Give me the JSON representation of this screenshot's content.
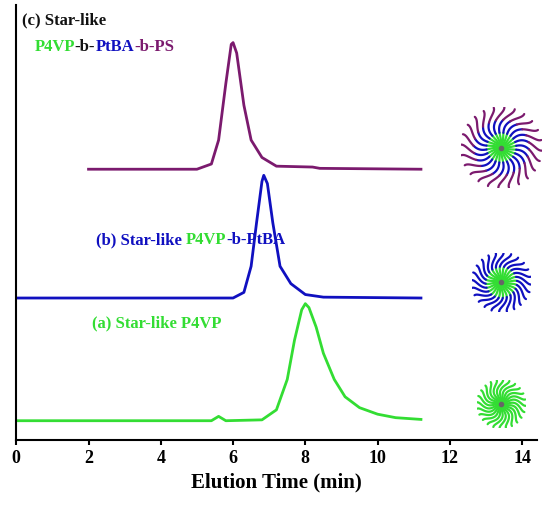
{
  "chart_data": {
    "type": "line",
    "x_label": "Elution Time (min)",
    "xlim": [
      0,
      14.4
    ],
    "xticks": [
      0,
      2,
      4,
      6,
      8,
      10,
      12,
      14
    ],
    "ylim": [
      0,
      10
    ],
    "yticks": [],
    "tick_labels": "x",
    "grid": false,
    "series": [
      {
        "name": "(a) Star-like P4VP",
        "color": "#33dd33",
        "x": [
          0,
          5.4,
          5.6,
          5.8,
          6.8,
          7.2,
          7.5,
          7.7,
          7.9,
          8.0,
          8.1,
          8.3,
          8.5,
          8.8,
          9.1,
          9.5,
          10.0,
          10.5,
          11.2
        ],
        "values": [
          0.45,
          0.45,
          0.55,
          0.45,
          0.47,
          0.7,
          1.4,
          2.3,
          3.0,
          3.14,
          3.05,
          2.6,
          2.0,
          1.4,
          1.0,
          0.75,
          0.6,
          0.52,
          0.48
        ],
        "label_parts": [
          [
            [
              "(a) Star-like P4VP",
              "#33dd33"
            ]
          ]
        ]
      },
      {
        "name": "(b) Star-like P4VP-b-PtBA",
        "color": "#1010c0",
        "x": [
          0,
          6.0,
          6.3,
          6.5,
          6.65,
          6.8,
          6.85,
          6.95,
          7.1,
          7.3,
          7.6,
          8.0,
          8.5,
          11.2
        ],
        "values": [
          3.27,
          3.27,
          3.4,
          4.0,
          5.0,
          5.95,
          6.09,
          5.9,
          5.0,
          4.0,
          3.6,
          3.35,
          3.29,
          3.27
        ],
        "label_parts": [
          [
            [
              "(b) Star-like ",
              "#1010c0"
            ],
            [
              "P4VP",
              "#33dd33"
            ],
            [
              "-b-PtBA",
              "#1010c0"
            ]
          ]
        ]
      },
      {
        "name": "(c) Star-like P4VP-b-PtBA-b-PS",
        "color": "#7b1a6e",
        "x": [
          2.0,
          5.0,
          5.4,
          5.6,
          5.8,
          5.95,
          6.0,
          6.1,
          6.3,
          6.5,
          6.8,
          7.2,
          8.2,
          8.4,
          11.2
        ],
        "values": [
          6.23,
          6.23,
          6.35,
          6.9,
          8.2,
          9.1,
          9.14,
          8.9,
          7.7,
          6.9,
          6.5,
          6.3,
          6.28,
          6.25,
          6.23
        ],
        "label_parts": [
          [
            [
              "(c) Star-like ",
              "#111111"
            ]
          ],
          [
            [
              "P4VP",
              "#33dd33"
            ],
            [
              "-b-",
              "#111111"
            ],
            [
              "PtBA",
              "#1010c0"
            ],
            [
              "-b-PS",
              "#7b1a6e"
            ]
          ]
        ]
      }
    ]
  }
}
